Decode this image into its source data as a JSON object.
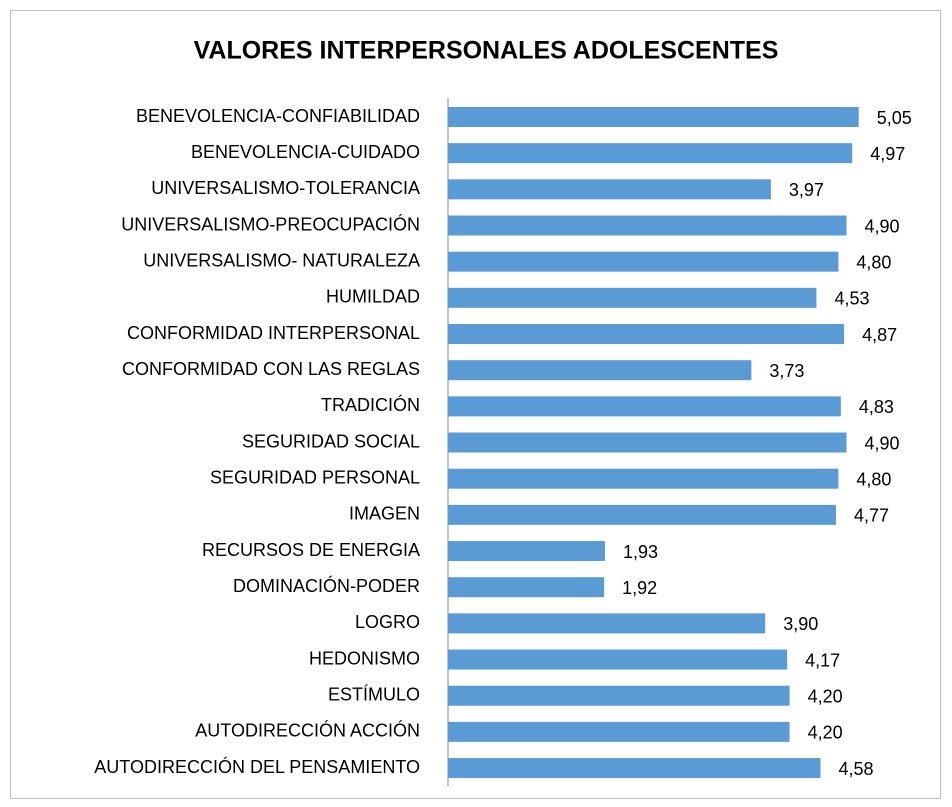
{
  "chart_data": {
    "type": "bar",
    "orientation": "horizontal",
    "title": "VALORES INTERPERSONALES ADOLESCENTES",
    "categories": [
      "BENEVOLENCIA-CONFIABILIDAD",
      "BENEVOLENCIA-CUIDADO",
      "UNIVERSALISMO-TOLERANCIA",
      "UNIVERSALISMO-PREOCUPACIÓN",
      "UNIVERSALISMO- NATURALEZA",
      "HUMILDAD",
      "CONFORMIDAD INTERPERSONAL",
      "CONFORMIDAD CON LAS REGLAS",
      "TRADICIÓN",
      "SEGURIDAD SOCIAL",
      "SEGURIDAD PERSONAL",
      "IMAGEN",
      "RECURSOS DE ENERGIA",
      "DOMINACIÓN-PODER",
      "LOGRO",
      "HEDONISMO",
      "ESTÍMULO",
      "AUTODIRECCIÓN ACCIÓN",
      "AUTODIRECCIÓN DEL PENSAMIENTO"
    ],
    "values": [
      5.05,
      4.97,
      3.97,
      4.9,
      4.8,
      4.53,
      4.87,
      3.73,
      4.83,
      4.9,
      4.8,
      4.77,
      1.93,
      1.92,
      3.9,
      4.17,
      4.2,
      4.2,
      4.58
    ],
    "value_labels": [
      "5,05",
      "4,97",
      "3,97",
      "4,90",
      "4,80",
      "4,53",
      "4,87",
      "3,73",
      "4,83",
      "4,90",
      "4,80",
      "4,77",
      "1,93",
      "1,92",
      "3,90",
      "4,17",
      "4,20",
      "4,20",
      "4,58"
    ],
    "color": "#5b9bd5",
    "xlim": [
      0,
      6
    ]
  }
}
